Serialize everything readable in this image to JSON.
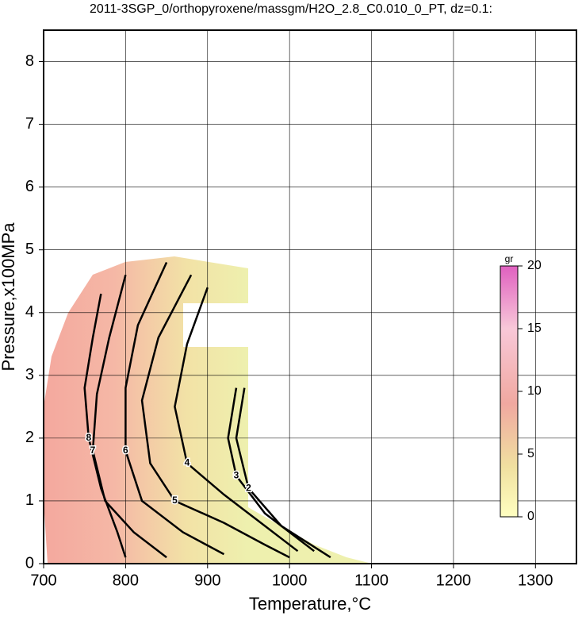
{
  "chart_data": {
    "type": "contour",
    "title": "2011-3SGP_0/orthopyroxene/massgm/H2O_2.8_C0.010_0_PT, dz=0.1:",
    "x_label": "Temperature,°C",
    "y_label": "Pressure,x100MPa",
    "xlim": [
      700,
      1350
    ],
    "ylim": [
      0,
      8.5
    ],
    "xticks": [
      700,
      800,
      900,
      1000,
      1100,
      1200,
      1300
    ],
    "yticks": [
      0,
      1,
      2,
      3,
      4,
      5,
      6,
      7,
      8
    ],
    "grid": true,
    "contours": [
      {
        "level": 8,
        "x": [
          770,
          760,
          750,
          755,
          770,
          790,
          800
        ],
        "y": [
          4.3,
          3.6,
          2.8,
          2.0,
          1.2,
          0.5,
          0.1
        ]
      },
      {
        "level": 7,
        "x": [
          800,
          780,
          765,
          760,
          775,
          810,
          850
        ],
        "y": [
          4.6,
          3.6,
          2.7,
          1.8,
          1.0,
          0.5,
          0.1
        ]
      },
      {
        "level": 6,
        "x": [
          850,
          815,
          800,
          800,
          820,
          870,
          920
        ],
        "y": [
          4.8,
          3.8,
          2.8,
          1.8,
          1.0,
          0.5,
          0.15
        ]
      },
      {
        "level": 5,
        "x": [
          880,
          840,
          820,
          830,
          860,
          920,
          970,
          1000
        ],
        "y": [
          4.6,
          3.6,
          2.6,
          1.6,
          1.0,
          0.65,
          0.3,
          0.1
        ]
      },
      {
        "level": 4,
        "x": [
          900,
          875,
          860,
          875,
          920,
          960,
          1010
        ],
        "y": [
          4.4,
          3.5,
          2.5,
          1.6,
          1.1,
          0.7,
          0.2
        ]
      },
      {
        "level": 3,
        "x": [
          935,
          925,
          935,
          970,
          1030
        ],
        "y": [
          2.8,
          2.0,
          1.4,
          0.8,
          0.2
        ]
      },
      {
        "level": 2,
        "x": [
          945,
          935,
          950,
          990,
          1050
        ],
        "y": [
          2.8,
          2.0,
          1.2,
          0.6,
          0.1
        ]
      }
    ],
    "colorbar": {
      "label": "gr",
      "lim": [
        0,
        20
      ],
      "ticks": [
        0,
        5,
        10,
        15,
        20
      ]
    }
  }
}
